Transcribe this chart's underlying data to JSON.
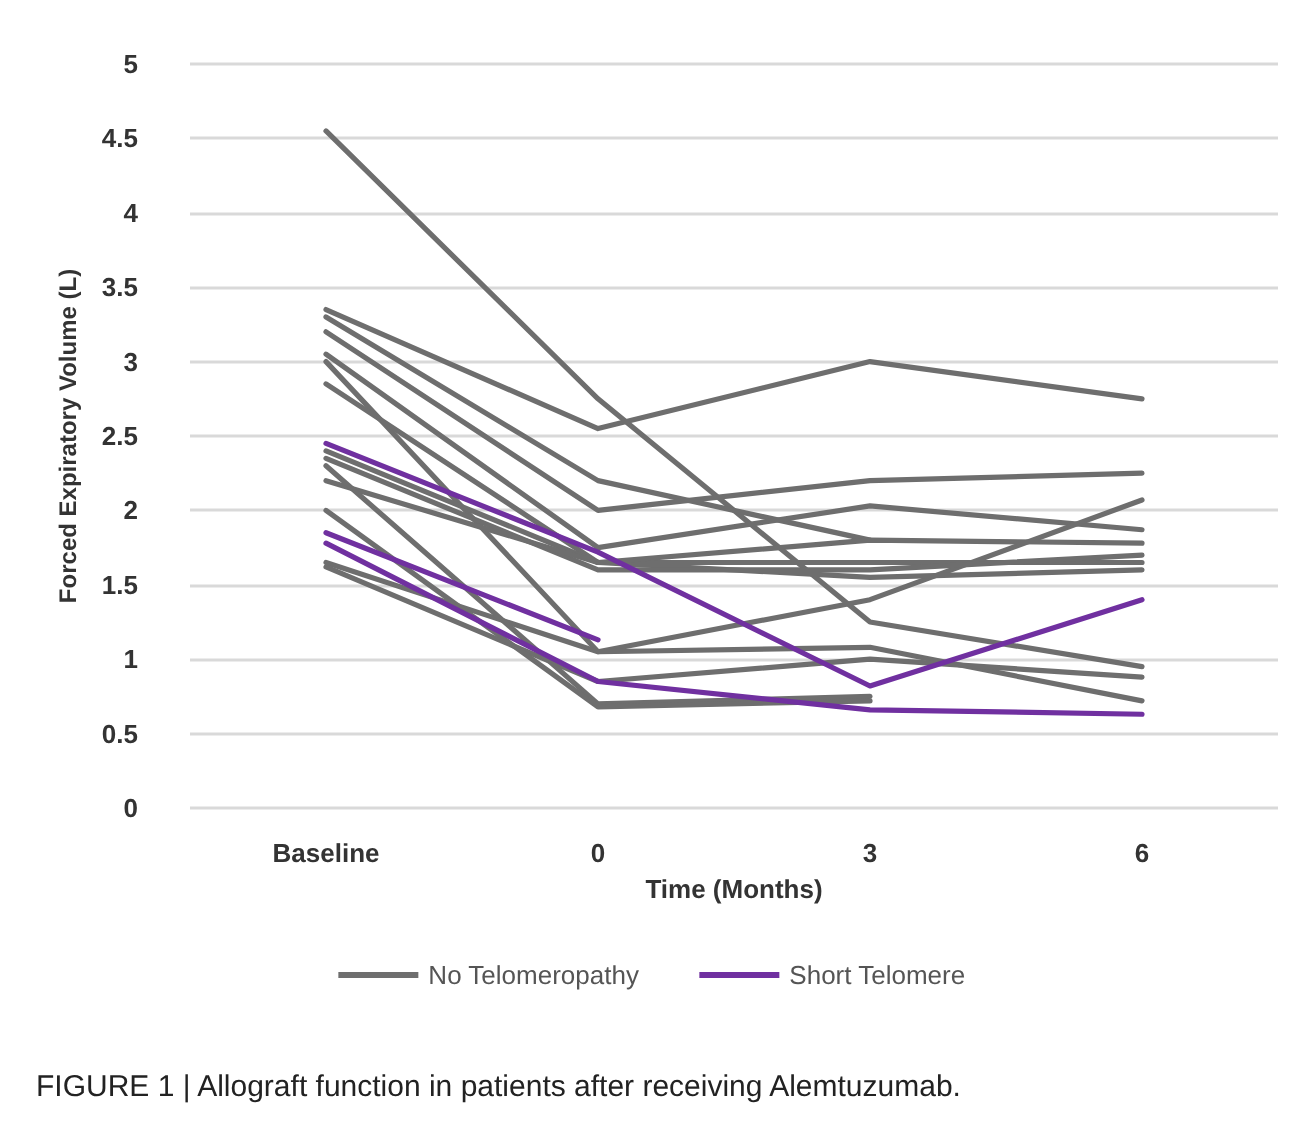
{
  "chart_data": {
    "type": "line",
    "xlabel": "Time (Months)",
    "ylabel": "Forced Expiratory Volume (L)",
    "categories": [
      "Baseline",
      "0",
      "3",
      "6"
    ],
    "ylim": [
      0,
      5
    ],
    "yticks": [
      0,
      0.5,
      1,
      1.5,
      2,
      2.5,
      3,
      3.5,
      4,
      4.5,
      5
    ],
    "grid": "y",
    "legend": "bottom",
    "marker": "none",
    "line_style": "solid",
    "annotations": [
      "FIGURE 1 | Allograft function in patients after receiving Alemtuzumab."
    ],
    "series": [
      {
        "name": "No Telomeropathy",
        "color": "#6e6e6e",
        "values": [
          4.55,
          2.75,
          1.25,
          0.95
        ]
      },
      {
        "color": "#6e6e6e",
        "values": [
          3.35,
          2.55,
          3.0,
          2.75
        ]
      },
      {
        "color": "#6e6e6e",
        "values": [
          3.3,
          2.2,
          1.8,
          null
        ]
      },
      {
        "color": "#6e6e6e",
        "values": [
          3.2,
          2.0,
          2.2,
          2.25
        ]
      },
      {
        "color": "#6e6e6e",
        "values": [
          3.05,
          1.75,
          2.03,
          1.87
        ]
      },
      {
        "color": "#6e6e6e",
        "values": [
          3.0,
          1.05,
          1.4,
          2.07
        ]
      },
      {
        "color": "#6e6e6e",
        "values": [
          2.85,
          1.65,
          1.55,
          1.6
        ]
      },
      {
        "color": "#6e6e6e",
        "values": [
          2.4,
          1.65,
          1.65,
          1.65
        ]
      },
      {
        "color": "#6e6e6e",
        "values": [
          2.35,
          1.6,
          1.6,
          1.7
        ]
      },
      {
        "color": "#6e6e6e",
        "values": [
          2.2,
          1.65,
          1.8,
          1.78
        ]
      },
      {
        "color": "#6e6e6e",
        "values": [
          1.65,
          1.05,
          1.08,
          0.72
        ]
      },
      {
        "color": "#6e6e6e",
        "values": [
          1.62,
          0.85,
          1.0,
          0.88
        ]
      },
      {
        "color": "#6e6e6e",
        "values": [
          2.3,
          0.7,
          0.75,
          null
        ]
      },
      {
        "color": "#6e6e6e",
        "values": [
          2.0,
          0.68,
          0.72,
          null
        ]
      },
      {
        "name": "Short Telomere",
        "color": "#7030a0",
        "values": [
          2.45,
          1.72,
          0.82,
          1.4
        ]
      },
      {
        "color": "#7030a0",
        "values": [
          1.85,
          1.13,
          null,
          null
        ]
      },
      {
        "color": "#7030a0",
        "values": [
          1.78,
          0.85,
          0.66,
          0.63
        ]
      }
    ]
  }
}
